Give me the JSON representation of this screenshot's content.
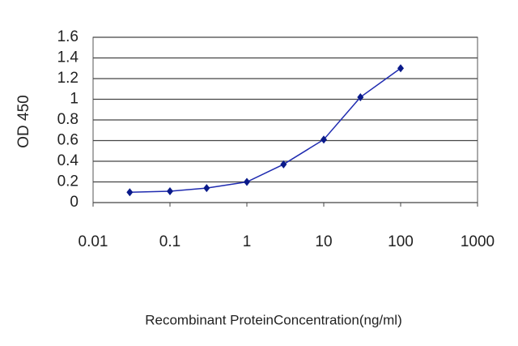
{
  "chart_data": {
    "type": "line",
    "x_label": "Recombinant ProteinConcentration(ng/ml)",
    "y_label": "OD 450",
    "x": [
      0.03,
      0.1,
      0.3,
      1,
      3,
      10,
      30,
      100
    ],
    "series": [
      {
        "color": "#1f2bb0",
        "values": [
          0.1,
          0.11,
          0.14,
          0.2,
          0.37,
          0.61,
          1.02,
          1.3
        ]
      }
    ],
    "xscale": "log",
    "xlim": [
      0.01,
      1000
    ],
    "xticks": [
      0.01,
      0.1,
      1,
      10,
      100,
      1000
    ],
    "ylim": [
      0,
      1.6
    ],
    "yticks": [
      0,
      0.2,
      0.4,
      0.6,
      0.8,
      1,
      1.2,
      1.4,
      1.6
    ],
    "grid": true
  }
}
